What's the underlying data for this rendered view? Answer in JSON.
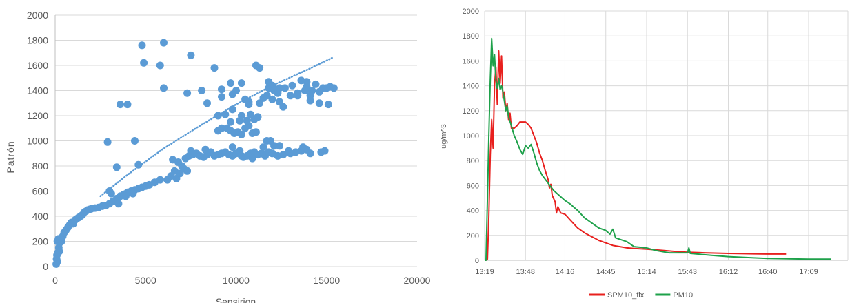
{
  "chart_data": [
    {
      "type": "scatter",
      "title": "",
      "xlabel": "Sensirion",
      "ylabel": "Patrón",
      "xlim": [
        0,
        20000
      ],
      "ylim": [
        0,
        2000
      ],
      "xticks": [
        "0",
        "5000",
        "10000",
        "15000",
        "20000"
      ],
      "yticks": [
        "0",
        "200",
        "400",
        "600",
        "800",
        "1000",
        "1200",
        "1400",
        "1600",
        "1800",
        "2000"
      ],
      "grid": "horizontal",
      "colors": {
        "points": "#5b9bd5",
        "trend": "#5b9bd5"
      },
      "trendline": {
        "style": "dotted",
        "points": [
          [
            2500,
            560
          ],
          [
            4000,
            730
          ],
          [
            6000,
            940
          ],
          [
            8000,
            1120
          ],
          [
            10000,
            1290
          ],
          [
            12000,
            1440
          ],
          [
            14000,
            1570
          ],
          [
            15300,
            1660
          ]
        ]
      },
      "points": [
        [
          60,
          20
        ],
        [
          80,
          60
        ],
        [
          100,
          90
        ],
        [
          120,
          40
        ],
        [
          150,
          110
        ],
        [
          200,
          150
        ],
        [
          230,
          120
        ],
        [
          260,
          190
        ],
        [
          300,
          220
        ],
        [
          350,
          200
        ],
        [
          120,
          200
        ],
        [
          180,
          220
        ],
        [
          420,
          240
        ],
        [
          500,
          270
        ],
        [
          600,
          290
        ],
        [
          700,
          310
        ],
        [
          800,
          330
        ],
        [
          900,
          350
        ],
        [
          1000,
          340
        ],
        [
          1100,
          370
        ],
        [
          1200,
          380
        ],
        [
          1300,
          390
        ],
        [
          1400,
          400
        ],
        [
          1500,
          410
        ],
        [
          1600,
          430
        ],
        [
          1700,
          440
        ],
        [
          1800,
          450
        ],
        [
          1900,
          455
        ],
        [
          2000,
          460
        ],
        [
          2200,
          465
        ],
        [
          2400,
          470
        ],
        [
          2600,
          480
        ],
        [
          2800,
          485
        ],
        [
          3000,
          500
        ],
        [
          3200,
          520
        ],
        [
          3400,
          540
        ],
        [
          3600,
          560
        ],
        [
          3800,
          575
        ],
        [
          4000,
          590
        ],
        [
          4200,
          600
        ],
        [
          4400,
          610
        ],
        [
          4600,
          620
        ],
        [
          4800,
          630
        ],
        [
          5000,
          640
        ],
        [
          5200,
          650
        ],
        [
          5500,
          670
        ],
        [
          5800,
          690
        ],
        [
          3000,
          600
        ],
        [
          3100,
          580
        ],
        [
          3500,
          500
        ],
        [
          3900,
          560
        ],
        [
          4300,
          580
        ],
        [
          6200,
          690
        ],
        [
          6400,
          720
        ],
        [
          6600,
          760
        ],
        [
          6700,
          700
        ],
        [
          6900,
          740
        ],
        [
          7000,
          800
        ],
        [
          6500,
          850
        ],
        [
          6800,
          830
        ],
        [
          7100,
          780
        ],
        [
          7300,
          760
        ],
        [
          7200,
          860
        ],
        [
          7400,
          880
        ],
        [
          7600,
          890
        ],
        [
          7800,
          900
        ],
        [
          8000,
          880
        ],
        [
          8200,
          870
        ],
        [
          8400,
          890
        ],
        [
          8600,
          910
        ],
        [
          8800,
          880
        ],
        [
          9000,
          890
        ],
        [
          9200,
          900
        ],
        [
          9400,
          910
        ],
        [
          9600,
          890
        ],
        [
          9800,
          880
        ],
        [
          10000,
          900
        ],
        [
          10200,
          920
        ],
        [
          10400,
          870
        ],
        [
          10600,
          880
        ],
        [
          10800,
          900
        ],
        [
          11000,
          910
        ],
        [
          11200,
          890
        ],
        [
          11400,
          900
        ],
        [
          11600,
          880
        ],
        [
          11800,
          910
        ],
        [
          12000,
          900
        ],
        [
          12300,
          880
        ],
        [
          12600,
          890
        ],
        [
          13000,
          900
        ],
        [
          13300,
          910
        ],
        [
          13600,
          920
        ],
        [
          13900,
          930
        ],
        [
          14100,
          900
        ],
        [
          14700,
          910
        ],
        [
          14900,
          920
        ],
        [
          7500,
          920
        ],
        [
          8300,
          930
        ],
        [
          9800,
          950
        ],
        [
          11500,
          950
        ],
        [
          11700,
          1000
        ],
        [
          11900,
          1000
        ],
        [
          12100,
          960
        ],
        [
          12400,
          960
        ],
        [
          10300,
          880
        ],
        [
          10900,
          860
        ],
        [
          12900,
          920
        ],
        [
          13700,
          950
        ],
        [
          9000,
          1080
        ],
        [
          9200,
          1100
        ],
        [
          9500,
          1100
        ],
        [
          9700,
          1080
        ],
        [
          9900,
          1060
        ],
        [
          10100,
          1070
        ],
        [
          10300,
          1050
        ],
        [
          10500,
          1100
        ],
        [
          10700,
          1120
        ],
        [
          10900,
          1060
        ],
        [
          11100,
          1070
        ],
        [
          9700,
          1150
        ],
        [
          10200,
          1160
        ],
        [
          10600,
          1160
        ],
        [
          11000,
          1170
        ],
        [
          9000,
          1200
        ],
        [
          9400,
          1210
        ],
        [
          9800,
          1250
        ],
        [
          10300,
          1200
        ],
        [
          10800,
          1210
        ],
        [
          11200,
          1190
        ],
        [
          11300,
          1300
        ],
        [
          11500,
          1340
        ],
        [
          11700,
          1360
        ],
        [
          11800,
          1420
        ],
        [
          12000,
          1440
        ],
        [
          12100,
          1400
        ],
        [
          12300,
          1380
        ],
        [
          12700,
          1420
        ],
        [
          13000,
          1360
        ],
        [
          13400,
          1380
        ],
        [
          13800,
          1400
        ],
        [
          14100,
          1360
        ],
        [
          14400,
          1450
        ],
        [
          14800,
          1420
        ],
        [
          15000,
          1420
        ],
        [
          15400,
          1420
        ],
        [
          14600,
          1300
        ],
        [
          15100,
          1290
        ],
        [
          15200,
          1430
        ],
        [
          12600,
          1270
        ],
        [
          11800,
          1470
        ],
        [
          12000,
          1330
        ],
        [
          12400,
          1310
        ],
        [
          11100,
          1600
        ],
        [
          11300,
          1580
        ],
        [
          9800,
          1370
        ],
        [
          10000,
          1400
        ],
        [
          10700,
          1290
        ],
        [
          8400,
          1300
        ],
        [
          8800,
          1580
        ],
        [
          9200,
          1350
        ],
        [
          9700,
          1460
        ],
        [
          10300,
          1460
        ],
        [
          10700,
          1310
        ],
        [
          12400,
          1420
        ],
        [
          13100,
          1440
        ],
        [
          13400,
          1360
        ],
        [
          13600,
          1480
        ],
        [
          13900,
          1430
        ],
        [
          14200,
          1400
        ],
        [
          14600,
          1390
        ],
        [
          8100,
          1400
        ],
        [
          7300,
          1380
        ],
        [
          6000,
          1420
        ],
        [
          5800,
          1600
        ],
        [
          4900,
          1620
        ],
        [
          4800,
          1760
        ],
        [
          6000,
          1780
        ],
        [
          7500,
          1680
        ],
        [
          3600,
          1290
        ],
        [
          4000,
          1290
        ],
        [
          2900,
          990
        ],
        [
          3400,
          790
        ],
        [
          4400,
          1000
        ],
        [
          4600,
          810
        ],
        [
          10500,
          1330
        ],
        [
          9200,
          1410
        ],
        [
          13900,
          1470
        ],
        [
          14100,
          1320
        ]
      ]
    },
    {
      "type": "line",
      "title": "",
      "xlabel": "",
      "ylabel": "ug/m^3",
      "x_ticks": [
        "13:19",
        "13:48",
        "14:16",
        "14:45",
        "15:14",
        "15:43",
        "16:12",
        "16:40",
        "17:09"
      ],
      "ylim": [
        0,
        2000
      ],
      "yticks": [
        "0",
        "200",
        "400",
        "600",
        "800",
        "1000",
        "1200",
        "1400",
        "1600",
        "1800",
        "2000"
      ],
      "grid": "both",
      "legend": "bottom",
      "series": [
        {
          "name": "SPM10_fix",
          "color": "#e8201e",
          "points": [
            [
              "13:19",
              0
            ],
            [
              "13:20",
              0
            ],
            [
              "13:21",
              10
            ],
            [
              "13:22",
              350
            ],
            [
              "13:23",
              850
            ],
            [
              "13:24",
              1130
            ],
            [
              "13:25",
              900
            ],
            [
              "13:26",
              1400
            ],
            [
              "13:27",
              1550
            ],
            [
              "13:28",
              1250
            ],
            [
              "13:29",
              1680
            ],
            [
              "13:30",
              1420
            ],
            [
              "13:31",
              1640
            ],
            [
              "13:32",
              1300
            ],
            [
              "13:33",
              1350
            ],
            [
              "13:34",
              1200
            ],
            [
              "13:35",
              1260
            ],
            [
              "13:36",
              1130
            ],
            [
              "13:37",
              1180
            ],
            [
              "13:38",
              1060
            ],
            [
              "13:40",
              1060
            ],
            [
              "13:42",
              1080
            ],
            [
              "13:44",
              1110
            ],
            [
              "13:46",
              1110
            ],
            [
              "13:48",
              1110
            ],
            [
              "13:50",
              1090
            ],
            [
              "13:52",
              1060
            ],
            [
              "13:54",
              1000
            ],
            [
              "13:56",
              940
            ],
            [
              "13:58",
              860
            ],
            [
              "14:00",
              800
            ],
            [
              "14:02",
              720
            ],
            [
              "14:04",
              650
            ],
            [
              "14:05",
              580
            ],
            [
              "14:06",
              610
            ],
            [
              "14:07",
              520
            ],
            [
              "14:09",
              470
            ],
            [
              "14:10",
              380
            ],
            [
              "14:11",
              430
            ],
            [
              "14:13",
              380
            ],
            [
              "14:16",
              370
            ],
            [
              "14:20",
              320
            ],
            [
              "14:25",
              260
            ],
            [
              "14:30",
              220
            ],
            [
              "14:35",
              190
            ],
            [
              "14:40",
              160
            ],
            [
              "14:45",
              140
            ],
            [
              "14:50",
              120
            ],
            [
              "14:55",
              110
            ],
            [
              "15:00",
              100
            ],
            [
              "15:05",
              95
            ],
            [
              "15:14",
              90
            ],
            [
              "15:25",
              80
            ],
            [
              "15:35",
              70
            ],
            [
              "15:43",
              65
            ],
            [
              "15:55",
              60
            ],
            [
              "16:12",
              55
            ],
            [
              "16:30",
              52
            ],
            [
              "16:40",
              50
            ],
            [
              "16:53",
              50
            ]
          ]
        },
        {
          "name": "PM10",
          "color": "#1ea14a",
          "points": [
            [
              "13:19",
              0
            ],
            [
              "13:20",
              0
            ],
            [
              "13:21",
              500
            ],
            [
              "13:22",
              1000
            ],
            [
              "13:23",
              1450
            ],
            [
              "13:24",
              1780
            ],
            [
              "13:25",
              1560
            ],
            [
              "13:26",
              1650
            ],
            [
              "13:27",
              1450
            ],
            [
              "13:28",
              1380
            ],
            [
              "13:29",
              1460
            ],
            [
              "13:30",
              1370
            ],
            [
              "13:31",
              1400
            ],
            [
              "13:32",
              1350
            ],
            [
              "13:33",
              1280
            ],
            [
              "13:34",
              1200
            ],
            [
              "13:35",
              1240
            ],
            [
              "13:36",
              1150
            ],
            [
              "13:38",
              1080
            ],
            [
              "13:40",
              1000
            ],
            [
              "13:42",
              950
            ],
            [
              "13:44",
              890
            ],
            [
              "13:46",
              850
            ],
            [
              "13:48",
              920
            ],
            [
              "13:50",
              900
            ],
            [
              "13:52",
              930
            ],
            [
              "13:54",
              860
            ],
            [
              "13:56",
              780
            ],
            [
              "13:58",
              720
            ],
            [
              "14:00",
              680
            ],
            [
              "14:04",
              620
            ],
            [
              "14:08",
              560
            ],
            [
              "14:12",
              520
            ],
            [
              "14:16",
              480
            ],
            [
              "14:20",
              450
            ],
            [
              "14:25",
              400
            ],
            [
              "14:30",
              340
            ],
            [
              "14:35",
              300
            ],
            [
              "14:40",
              260
            ],
            [
              "14:45",
              240
            ],
            [
              "14:48",
              210
            ],
            [
              "14:50",
              250
            ],
            [
              "14:52",
              180
            ],
            [
              "15:00",
              150
            ],
            [
              "15:05",
              110
            ],
            [
              "15:14",
              100
            ],
            [
              "15:20",
              80
            ],
            [
              "15:30",
              60
            ],
            [
              "15:43",
              60
            ],
            [
              "15:44",
              100
            ],
            [
              "15:45",
              55
            ],
            [
              "16:00",
              40
            ],
            [
              "16:12",
              30
            ],
            [
              "16:30",
              20
            ],
            [
              "16:40",
              15
            ],
            [
              "17:09",
              10
            ],
            [
              "17:25",
              10
            ]
          ]
        }
      ]
    }
  ]
}
